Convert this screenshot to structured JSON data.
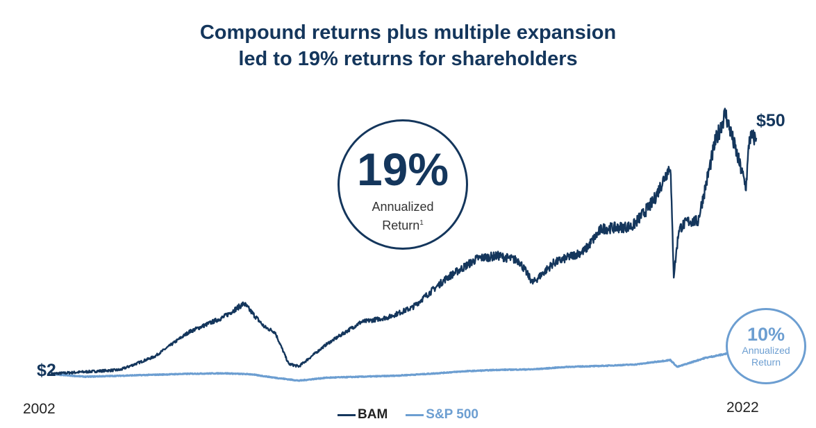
{
  "title_line1": "Compound returns plus multiple expansion",
  "title_line2": "led to 19% returns for shareholders",
  "labels": {
    "start_value": "$2",
    "end_value": "$50",
    "year_start": "2002",
    "year_end": "2022"
  },
  "callouts": {
    "bam": {
      "value": "19%",
      "line1": "Annualized",
      "line2": "Return",
      "footnote": "1"
    },
    "sp500": {
      "value": "10%",
      "line1": "Annualized",
      "line2": "Return"
    }
  },
  "colors": {
    "bam": "#14365c",
    "sp500": "#6c9ed1"
  },
  "chart_data": {
    "type": "line",
    "title": "Compound returns plus multiple expansion led to 19% returns for shareholders",
    "xlabel": "",
    "ylabel": "",
    "xlim": [
      2002,
      2022.6
    ],
    "ylim": [
      0,
      58
    ],
    "grid": false,
    "legend": "bottom-center",
    "series": [
      {
        "name": "BAM",
        "color": "#14365c",
        "x": [
          2002.0,
          2003.0,
          2004.0,
          2005.0,
          2006.0,
          2007.0,
          2007.6,
          2008.2,
          2008.5,
          2008.9,
          2009.2,
          2010.0,
          2011.0,
          2011.8,
          2012.5,
          2013.5,
          2014.4,
          2015.0,
          2015.6,
          2016.0,
          2016.6,
          2017.5,
          2018.0,
          2018.9,
          2019.5,
          2020.0,
          2020.1,
          2020.25,
          2020.5,
          2020.8,
          2021.3,
          2021.6,
          2021.8,
          2022.0,
          2022.2,
          2022.3,
          2022.5
        ],
        "values": [
          2.0,
          2.4,
          2.8,
          5.5,
          10.5,
          13.5,
          16.3,
          11.5,
          10.5,
          4.0,
          3.5,
          8.0,
          12.5,
          13.5,
          15.5,
          21.5,
          25.5,
          26.0,
          25.0,
          20.5,
          24.5,
          27.0,
          31.5,
          32.0,
          37.0,
          44.5,
          22.0,
          31.5,
          33.0,
          33.0,
          49.0,
          55.0,
          50.0,
          45.0,
          40.0,
          50.0,
          50.0
        ]
      },
      {
        "name": "S&P 500",
        "color": "#6c9ed1",
        "x": [
          2002.0,
          2003.0,
          2004.0,
          2005.0,
          2006.0,
          2007.0,
          2007.8,
          2008.5,
          2009.2,
          2010.0,
          2011.0,
          2012.0,
          2013.0,
          2014.0,
          2015.0,
          2016.0,
          2017.0,
          2018.0,
          2019.0,
          2020.0,
          2020.2,
          2020.6,
          2021.0,
          2021.5,
          2022.0
        ],
        "values": [
          1.9,
          1.4,
          1.6,
          1.8,
          2.0,
          2.1,
          1.9,
          1.2,
          0.6,
          1.2,
          1.4,
          1.6,
          2.0,
          2.5,
          2.8,
          2.9,
          3.4,
          3.6,
          3.9,
          4.8,
          3.4,
          4.3,
          5.2,
          5.9,
          6.6
        ]
      }
    ]
  }
}
